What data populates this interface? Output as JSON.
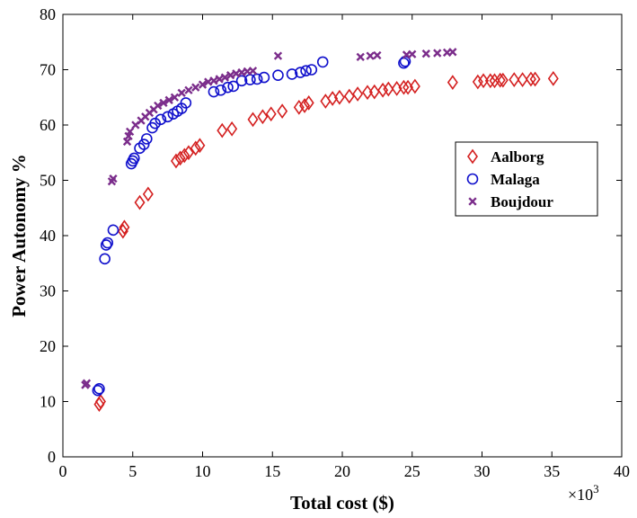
{
  "chart_data": {
    "type": "scatter",
    "xlabel": "Total cost ($)",
    "ylabel": "Power Autonomy %",
    "x_multiplier": "×10",
    "x_multiplier_exp": "3",
    "xlim": [
      0,
      40
    ],
    "ylim": [
      0,
      80
    ],
    "xticks": [
      "0",
      "5",
      "10",
      "15",
      "20",
      "25",
      "30",
      "35",
      "40"
    ],
    "yticks": [
      "0",
      "10",
      "20",
      "30",
      "40",
      "50",
      "60",
      "70",
      "80"
    ],
    "grid": false,
    "legend_position": "right-center",
    "series": [
      {
        "name": "Aalborg",
        "marker": "diamond",
        "color": "#d42020",
        "x": [
          2.6,
          2.7,
          4.3,
          4.4,
          5.5,
          6.1,
          8.1,
          8.4,
          8.7,
          9.0,
          9.5,
          9.8,
          11.4,
          12.1,
          13.6,
          14.3,
          14.9,
          15.7,
          16.9,
          17.3,
          17.6,
          18.8,
          19.3,
          19.8,
          20.5,
          21.1,
          21.8,
          22.3,
          22.9,
          23.3,
          23.9,
          24.4,
          24.7,
          25.2,
          27.9,
          29.7,
          30.1,
          30.6,
          30.9,
          31.3,
          31.5,
          32.3,
          32.9,
          33.5,
          33.8,
          35.1
        ],
        "y": [
          9.5,
          10.0,
          40.8,
          41.5,
          46.0,
          47.5,
          53.5,
          54.0,
          54.5,
          55.0,
          55.8,
          56.3,
          59.0,
          59.3,
          61.0,
          61.5,
          62.0,
          62.5,
          63.2,
          63.5,
          64.0,
          64.3,
          64.8,
          65.0,
          65.2,
          65.6,
          65.9,
          66.0,
          66.3,
          66.5,
          66.6,
          66.8,
          66.8,
          67.0,
          67.7,
          67.8,
          68.0,
          68.0,
          68.0,
          68.1,
          68.1,
          68.2,
          68.2,
          68.3,
          68.3,
          68.4
        ]
      },
      {
        "name": "Malaga",
        "marker": "circle",
        "color": "#1010cc",
        "x": [
          2.5,
          2.6,
          3.0,
          3.1,
          3.2,
          3.6,
          4.9,
          5.0,
          5.1,
          5.5,
          5.8,
          6.0,
          6.4,
          6.6,
          7.0,
          7.5,
          7.9,
          8.2,
          8.5,
          8.8,
          10.8,
          11.3,
          11.8,
          12.2,
          12.8,
          13.4,
          13.9,
          14.4,
          15.4,
          16.4,
          17.0,
          17.4,
          17.8,
          18.6,
          24.4,
          24.5
        ],
        "y": [
          12.0,
          12.3,
          35.8,
          38.3,
          38.7,
          41.0,
          53.0,
          53.5,
          54.0,
          55.8,
          56.5,
          57.5,
          59.5,
          60.3,
          61.0,
          61.5,
          62.0,
          62.5,
          63.0,
          64.0,
          66.0,
          66.3,
          66.8,
          67.0,
          68.0,
          68.2,
          68.3,
          68.6,
          69.0,
          69.2,
          69.5,
          69.8,
          70.0,
          71.4,
          71.2,
          71.5
        ]
      },
      {
        "name": "Boujdour",
        "marker": "x",
        "color": "#7b2d8b",
        "x": [
          1.6,
          1.7,
          3.5,
          3.6,
          4.6,
          4.7,
          4.8,
          5.2,
          5.6,
          5.9,
          6.2,
          6.5,
          6.8,
          7.2,
          7.6,
          8.0,
          8.5,
          9.0,
          9.5,
          10.0,
          10.4,
          10.8,
          11.2,
          11.6,
          12.0,
          12.4,
          12.8,
          13.2,
          13.6,
          15.4,
          21.3,
          22.0,
          22.5,
          24.6,
          25.0,
          26.0,
          26.8,
          27.5,
          27.9
        ],
        "y": [
          13.0,
          13.3,
          49.8,
          50.3,
          57.0,
          58.0,
          58.8,
          60.0,
          60.8,
          61.5,
          62.2,
          62.8,
          63.5,
          64.0,
          64.5,
          65.0,
          65.8,
          66.3,
          66.8,
          67.3,
          67.8,
          68.0,
          68.3,
          68.6,
          69.0,
          69.3,
          69.5,
          69.7,
          69.8,
          72.5,
          72.3,
          72.5,
          72.6,
          72.7,
          72.8,
          72.9,
          73.0,
          73.1,
          73.2
        ]
      }
    ]
  }
}
